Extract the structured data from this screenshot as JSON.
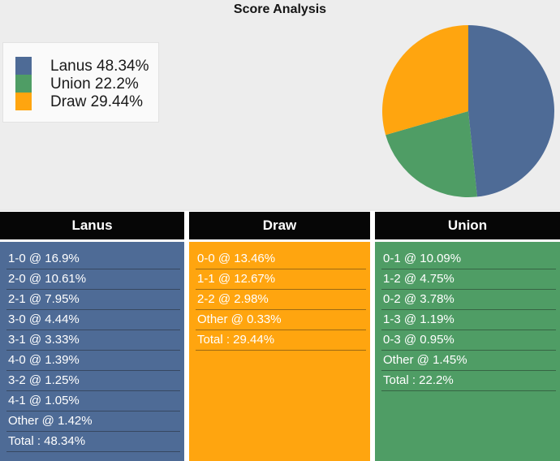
{
  "page": {
    "title": "Score Analysis"
  },
  "colors": {
    "background": "#EDEDED",
    "lanus_blue": "#4E6B96",
    "union_green": "#4F9D65",
    "draw_orange": "#FFA50F",
    "header_bg": "#060606",
    "header_text": "#FFFFFF",
    "row_text": "#FFFFFF",
    "legend_bg": "#FAFAFA"
  },
  "chart_data": {
    "type": "pie",
    "title": "Score Analysis",
    "start_angle": "top",
    "direction": "clockwise",
    "legend_position": "upper left",
    "slices": [
      {
        "label": "Lanus",
        "value": 48.34,
        "color_key": "lanus_blue"
      },
      {
        "label": "Union",
        "value": 22.2,
        "color_key": "union_green"
      },
      {
        "label": "Draw",
        "value": 29.44,
        "color_key": "draw_orange"
      }
    ],
    "legend": [
      "Lanus 48.34%",
      "Union 22.2%",
      "Draw 29.44%"
    ]
  },
  "tables": [
    {
      "header": "Lanus",
      "color_key": "lanus_blue",
      "rows": [
        "1-0 @ 16.9%",
        "2-0 @ 10.61%",
        "2-1 @ 7.95%",
        "3-0 @ 4.44%",
        "3-1 @ 3.33%",
        "4-0 @ 1.39%",
        "3-2 @ 1.25%",
        "4-1 @ 1.05%",
        "Other @ 1.42%",
        "Total : 48.34%"
      ]
    },
    {
      "header": "Draw",
      "color_key": "draw_orange",
      "rows": [
        "0-0 @ 13.46%",
        "1-1 @ 12.67%",
        "2-2 @ 2.98%",
        "Other @ 0.33%",
        "Total : 29.44%"
      ]
    },
    {
      "header": "Union",
      "color_key": "union_green",
      "rows": [
        "0-1 @ 10.09%",
        "1-2 @ 4.75%",
        "0-2 @ 3.78%",
        "1-3 @ 1.19%",
        "0-3 @ 0.95%",
        "Other @ 1.45%",
        "Total : 22.2%"
      ]
    }
  ]
}
